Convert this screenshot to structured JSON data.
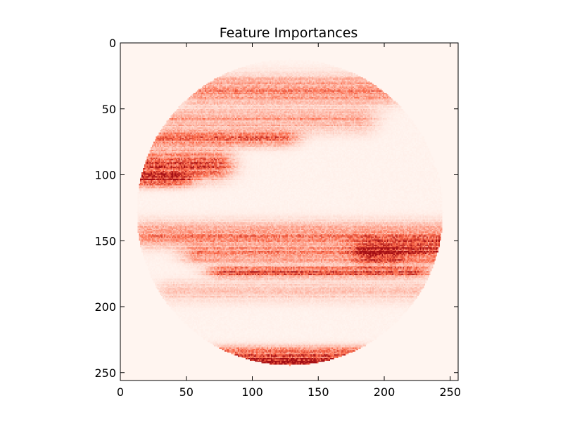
{
  "chart_data": {
    "type": "heatmap",
    "title": "Feature Importances",
    "xlabel": "",
    "ylabel": "",
    "colormap": "Reds",
    "colors": {
      "low": "#fff5f0",
      "mid": "#fb6a4a",
      "high": "#a50f15"
    },
    "image_size": [
      256,
      256
    ],
    "xlim": [
      0,
      256
    ],
    "ylim": [
      256,
      0
    ],
    "x_ticks": [
      0,
      50,
      100,
      150,
      200,
      250
    ],
    "y_ticks": [
      0,
      50,
      100,
      150,
      200,
      250
    ],
    "grid": false,
    "legend": "none",
    "disk": {
      "center_x": 128,
      "center_y": 128,
      "radius": 116
    },
    "bands": [
      {
        "y_center": 35,
        "y_width": 10,
        "x_from": 60,
        "x_to": 200,
        "intensity": 0.38
      },
      {
        "y_center": 58,
        "y_width": 9,
        "x_from": 40,
        "x_to": 180,
        "intensity": 0.28
      },
      {
        "y_center": 72,
        "y_width": 6,
        "x_from": 20,
        "x_to": 120,
        "intensity": 0.45
      },
      {
        "y_center": 92,
        "y_width": 10,
        "x_from": 10,
        "x_to": 70,
        "intensity": 0.6
      },
      {
        "y_center": 103,
        "y_width": 5,
        "x_from": 10,
        "x_to": 40,
        "intensity": 0.7
      },
      {
        "y_center": 145,
        "y_width": 9,
        "x_from": 20,
        "x_to": 245,
        "intensity": 0.4
      },
      {
        "y_center": 158,
        "y_width": 8,
        "x_from": 190,
        "x_to": 245,
        "intensity": 0.75
      },
      {
        "y_center": 160,
        "y_width": 6,
        "x_from": 60,
        "x_to": 200,
        "intensity": 0.45
      },
      {
        "y_center": 173,
        "y_width": 4,
        "x_from": 80,
        "x_to": 220,
        "intensity": 0.6
      },
      {
        "y_center": 188,
        "y_width": 8,
        "x_from": 40,
        "x_to": 230,
        "intensity": 0.16
      },
      {
        "y_center": 235,
        "y_width": 5,
        "x_from": 70,
        "x_to": 190,
        "intensity": 0.55
      },
      {
        "y_center": 241,
        "y_width": 3,
        "x_from": 90,
        "x_to": 160,
        "intensity": 0.9
      }
    ]
  }
}
